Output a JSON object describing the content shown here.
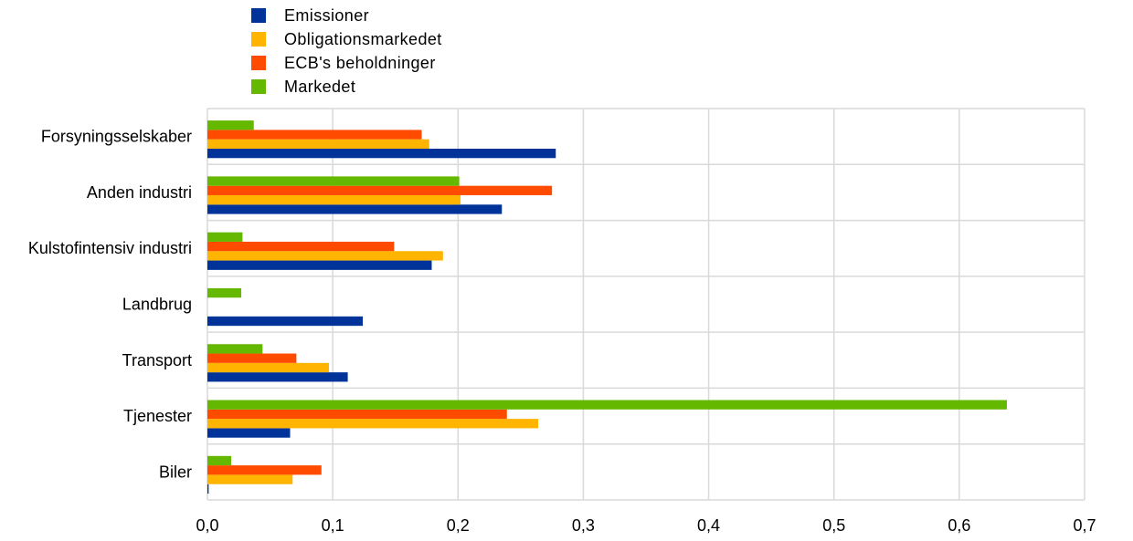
{
  "chart_data": {
    "type": "bar",
    "orientation": "horizontal",
    "categories": [
      "Forsyningsselskaber",
      "Anden industri",
      "Kulstofintensiv industri",
      "Landbrug",
      "Transport",
      "Tjenester",
      "Biler"
    ],
    "series": [
      {
        "name": "Emissioner",
        "color": "#003399",
        "values": [
          0.278,
          0.235,
          0.179,
          0.124,
          0.112,
          0.066,
          0.001
        ]
      },
      {
        "name": "Obligationsmarkedet",
        "color": "#ffb400",
        "values": [
          0.177,
          0.202,
          0.188,
          0.0,
          0.097,
          0.264,
          0.068
        ]
      },
      {
        "name": "ECB's beholdninger",
        "color": "#ff4b00",
        "values": [
          0.171,
          0.275,
          0.149,
          0.0,
          0.071,
          0.239,
          0.091
        ]
      },
      {
        "name": "Markedet",
        "color": "#65b800",
        "values": [
          0.037,
          0.201,
          0.028,
          0.027,
          0.044,
          0.638,
          0.019
        ]
      }
    ],
    "xlim": [
      0,
      0.7
    ],
    "xticks": [
      "0,0",
      "0,1",
      "0,2",
      "0,3",
      "0,4",
      "0,5",
      "0,6",
      "0,7"
    ],
    "grid": true,
    "legend_position": "top-left"
  }
}
